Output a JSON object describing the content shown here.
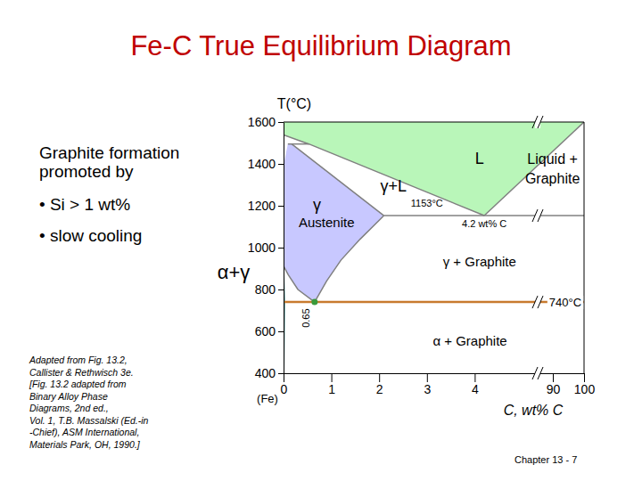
{
  "slide": {
    "title": "Fe-C True Equilibrium Diagram",
    "side_heading": [
      "Graphite formation",
      "promoted by"
    ],
    "bullets": [
      "• Si > 1 wt%",
      "• slow cooling"
    ],
    "source": [
      "Adapted from Fig. 13.2,",
      "Callister & Rethwisch 3e.",
      "[Fig. 13.2 adapted from",
      "Binary Alloy Phase",
      "Diagrams, 2nd ed.,",
      "Vol. 1, T.B. Massalski (Ed.-in",
      "-Chief), ASM International,",
      "Materials Park, OH, 1990.]"
    ],
    "footer": "Chapter 13 - 7"
  },
  "chart_data": {
    "type": "phase_diagram",
    "x_label": "C, wt% C",
    "x_sublabel": "(Fe)",
    "y_label": "T(°C)",
    "xlim": [
      0,
      100
    ],
    "ylim": [
      400,
      1600
    ],
    "xticks": [
      0,
      1,
      2,
      3,
      4,
      90,
      100
    ],
    "yticks": [
      400,
      600,
      800,
      1000,
      1200,
      1400,
      1600
    ],
    "regions": [
      {
        "color": "#b9f6b9",
        "x": [
          0,
          0,
          100,
          4.2,
          0.53
        ],
        "y": [
          1538,
          1600,
          1600,
          1153,
          1495
        ]
      },
      {
        "color": "#c8c8ff",
        "x": [
          0,
          0,
          0.09,
          0.17,
          2.1,
          1.6,
          1.2,
          0.9,
          0.65,
          0.3,
          0.1
        ],
        "y": [
          912,
          1394,
          1495,
          1495,
          1153,
          1040,
          940,
          840,
          740,
          800,
          870
        ]
      }
    ],
    "lines": [
      {
        "color": "#808080",
        "x": [
          0,
          0.53,
          4.2
        ],
        "y": [
          1538,
          1495,
          1153
        ]
      },
      {
        "color": "#808080",
        "x": [
          0.17,
          2.1
        ],
        "y": [
          1495,
          1153
        ]
      },
      {
        "color": "#808080",
        "x": [
          2.1,
          100
        ],
        "y": [
          1153,
          1153
        ]
      },
      {
        "color": "#808080",
        "x": [
          4.2,
          100
        ],
        "y": [
          1153,
          1600
        ]
      },
      {
        "color": "#808080",
        "x": [
          2.1,
          1.6,
          1.2,
          0.9,
          0.65
        ],
        "y": [
          1153,
          1040,
          940,
          840,
          740
        ]
      },
      {
        "color": "#808080",
        "x": [
          0.65,
          0.3,
          0.1,
          0
        ],
        "y": [
          740,
          800,
          870,
          912
        ]
      },
      {
        "color": "#5a9a9a",
        "x": [
          0,
          0.02,
          0.005
        ],
        "y": [
          912,
          740,
          400
        ]
      },
      {
        "color": "#808080",
        "x": [
          0.09,
          0.53
        ],
        "y": [
          1495,
          1495
        ]
      },
      {
        "color": "#c87a2e",
        "x": [
          0.02,
          100
        ],
        "y": [
          740,
          740
        ]
      }
    ],
    "points": [
      {
        "x": 0.65,
        "y": 740,
        "label": "0.65",
        "color": "#3a9a3a"
      }
    ],
    "annotations": [
      {
        "text": "L",
        "x": 4.1,
        "y": 1400
      },
      {
        "text": "γ+L",
        "x": 2.3,
        "y": 1270
      },
      {
        "text": "γ",
        "x": 0.7,
        "y": 1180
      },
      {
        "text": "Austenite",
        "x": 0.9,
        "y": 1100
      },
      {
        "text": "1153°C",
        "x": 3.0,
        "y": 1195
      },
      {
        "text": "4.2 wt% C",
        "x": 4.2,
        "y": 1100
      },
      {
        "lines": [
          "Liquid +",
          "Graphite"
        ],
        "x": 89,
        "y": 1400
      },
      {
        "text": "γ + Graphite",
        "x": 4.1,
        "y": 910
      },
      {
        "text": "α + Graphite",
        "x": 3.9,
        "y": 530
      },
      {
        "text": "740°C",
        "x": 94,
        "y": 740
      }
    ],
    "outside_labels": [
      "α+γ"
    ]
  }
}
